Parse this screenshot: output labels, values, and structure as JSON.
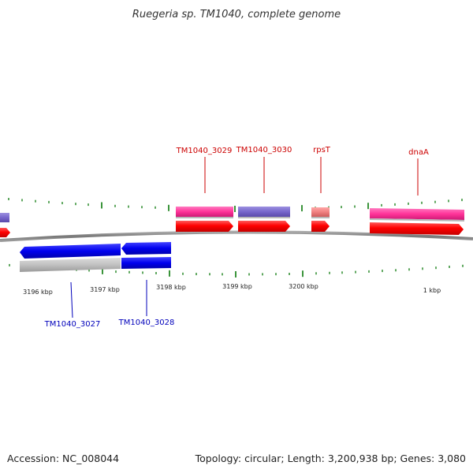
{
  "title": "Ruegeria sp. TM1040, complete genome",
  "accession": "Accession: NC_008044",
  "summary": "Topology: circular; Length: 3,200,938 bp; Genes: 3,080",
  "colors": {
    "backbone": "#8a8a8a",
    "tick": "#0a7a0a",
    "forward_label": "#cc0000",
    "reverse_label": "#0000bb",
    "cds_red": "#ff0000",
    "gene_pink": "#ff3399",
    "gene_purple": "#7766cc",
    "gene_salmon": "#f08080",
    "cds_blue": "#0000ee",
    "gene_gray": "#c0c0c0"
  },
  "scale_labels": [
    "3196 kbp",
    "3197 kbp",
    "3198 kbp",
    "3199 kbp",
    "3200 kbp",
    "1 kbp"
  ],
  "forward_genes": [
    {
      "label": "TM1040_3029",
      "feature": "gene_pink"
    },
    {
      "label": "TM1040_3030",
      "feature": "gene_purple"
    },
    {
      "label": "rpsT",
      "feature": "gene_salmon"
    },
    {
      "label": "dnaA",
      "feature": "gene_pink"
    }
  ],
  "reverse_genes": [
    {
      "label": "TM1040_3027",
      "feature": "gene_gray"
    },
    {
      "label": "TM1040_3028",
      "feature": "cds_blue"
    }
  ]
}
